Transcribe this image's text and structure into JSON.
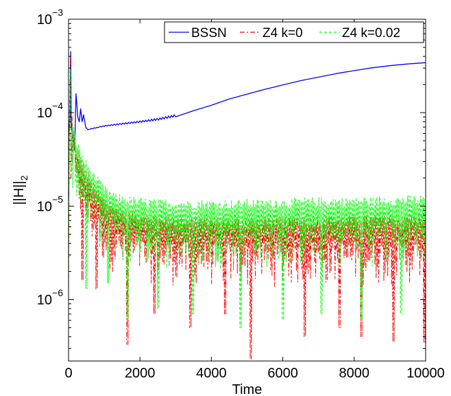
{
  "chart_data": {
    "type": "line",
    "xlabel": "Time",
    "ylabel": "||H||",
    "ylabel_subscript": "2",
    "xlim": [
      0,
      10000
    ],
    "ylim": [
      2.2e-07,
      0.001
    ],
    "yscale": "log",
    "grid": false,
    "legend_position": "top-right",
    "x_ticks": [
      0,
      2000,
      4000,
      6000,
      8000,
      10000
    ],
    "x_tick_labels": [
      "0",
      "2000",
      "4000",
      "6000",
      "8000",
      "10000"
    ],
    "y_ticks": [
      1e-06,
      1e-05,
      0.0001,
      0.001
    ],
    "y_tick_labels": [
      {
        "base": "10",
        "exp": "−6"
      },
      {
        "base": "10",
        "exp": "−5"
      },
      {
        "base": "10",
        "exp": "−4"
      },
      {
        "base": "10",
        "exp": "−3"
      }
    ],
    "series": [
      {
        "name": "BSSN",
        "color": "#0000ff",
        "dash": "solid",
        "points": [
          [
            0,
            1.2e-05
          ],
          [
            20,
            7e-05
          ],
          [
            40,
            9e-05
          ],
          [
            60,
            0.00045
          ],
          [
            75,
            8e-05
          ],
          [
            100,
            6e-05
          ],
          [
            140,
            5e-05
          ],
          [
            170,
            3.9e-05
          ],
          [
            210,
            0.00016
          ],
          [
            260,
            9e-05
          ],
          [
            300,
            8e-05
          ],
          [
            340,
            0.00011
          ],
          [
            380,
            8e-05
          ],
          [
            420,
            9.5e-05
          ],
          [
            480,
            7e-05
          ],
          [
            540,
            6.6e-05
          ],
          [
            700,
            6.8e-05
          ],
          [
            1000,
            7.2e-05
          ],
          [
            1500,
            7.6e-05
          ],
          [
            2000,
            8e-05
          ],
          [
            2500,
            8.5e-05
          ],
          [
            3000,
            9.3e-05
          ],
          [
            3500,
            0.000105
          ],
          [
            4000,
            0.00012
          ],
          [
            4500,
            0.00014
          ],
          [
            5000,
            0.000158
          ],
          [
            5500,
            0.000178
          ],
          [
            6000,
            0.000198
          ],
          [
            6500,
            0.00022
          ],
          [
            7000,
            0.00024
          ],
          [
            7500,
            0.000262
          ],
          [
            8000,
            0.000282
          ],
          [
            8500,
            0.000302
          ],
          [
            9000,
            0.000318
          ],
          [
            9500,
            0.000332
          ],
          [
            10000,
            0.000343
          ]
        ]
      },
      {
        "name": "Z4 k=0",
        "color": "#ff0000",
        "dash": "dashdot",
        "points": [
          [
            0,
            1e-06
          ],
          [
            20,
            6e-05
          ],
          [
            50,
            0.0004
          ],
          [
            70,
            2e-05
          ],
          [
            100,
            7e-05
          ],
          [
            200,
            3.5e-05
          ],
          [
            400,
            2.2e-05
          ],
          [
            600,
            1.5e-05
          ],
          [
            800,
            1.1e-05
          ],
          [
            1000,
            9e-06
          ],
          [
            1300,
            7.5e-06
          ],
          [
            1600,
            6.5e-06
          ],
          [
            2000,
            6.2e-06
          ],
          [
            2500,
            5.8e-06
          ],
          [
            3000,
            5.6e-06
          ],
          [
            4000,
            5.5e-06
          ],
          [
            5000,
            5.4e-06
          ],
          [
            6000,
            5.5e-06
          ],
          [
            7000,
            5.6e-06
          ],
          [
            8000,
            5.7e-06
          ],
          [
            9000,
            5.8e-06
          ],
          [
            10000,
            5.8e-06
          ]
        ],
        "minima": [
          [
            400,
            1.6e-06
          ],
          [
            800,
            1.3e-06
          ],
          [
            1650,
            3.3e-07
          ],
          [
            2400,
            7e-07
          ],
          [
            3400,
            5e-07
          ],
          [
            4400,
            7e-07
          ],
          [
            5100,
            2.3e-07
          ],
          [
            6600,
            4e-07
          ],
          [
            7600,
            5e-07
          ],
          [
            8200,
            4e-07
          ],
          [
            9100,
            3.5e-07
          ],
          [
            9950,
            3.5e-07
          ]
        ]
      },
      {
        "name": "Z4 k=0.02",
        "color": "#00ff00",
        "dash": "dashed",
        "points": [
          [
            0,
            1.2e-06
          ],
          [
            20,
            5e-05
          ],
          [
            50,
            0.0003
          ],
          [
            70,
            2.5e-05
          ],
          [
            100,
            6e-05
          ],
          [
            200,
            4e-05
          ],
          [
            400,
            2.6e-05
          ],
          [
            600,
            1.9e-05
          ],
          [
            800,
            1.5e-05
          ],
          [
            1000,
            1.2e-05
          ],
          [
            1300,
            1e-05
          ],
          [
            1600,
            9.2e-06
          ],
          [
            2000,
            8.8e-06
          ],
          [
            2500,
            8.6e-06
          ],
          [
            3000,
            8.5e-06
          ],
          [
            4000,
            8.4e-06
          ],
          [
            5000,
            8.5e-06
          ],
          [
            6000,
            8.7e-06
          ],
          [
            7000,
            8.9e-06
          ],
          [
            8000,
            9e-06
          ],
          [
            9000,
            9.2e-06
          ],
          [
            10000,
            9.4e-06
          ]
        ],
        "minima": [
          [
            500,
            1.3e-06
          ],
          [
            1100,
            1.5e-06
          ],
          [
            1650,
            6e-07
          ],
          [
            2500,
            8e-07
          ],
          [
            3500,
            7e-07
          ],
          [
            4800,
            5e-07
          ],
          [
            6000,
            6e-07
          ],
          [
            7100,
            7e-07
          ],
          [
            8200,
            6e-07
          ],
          [
            9300,
            7e-07
          ]
        ]
      }
    ]
  }
}
